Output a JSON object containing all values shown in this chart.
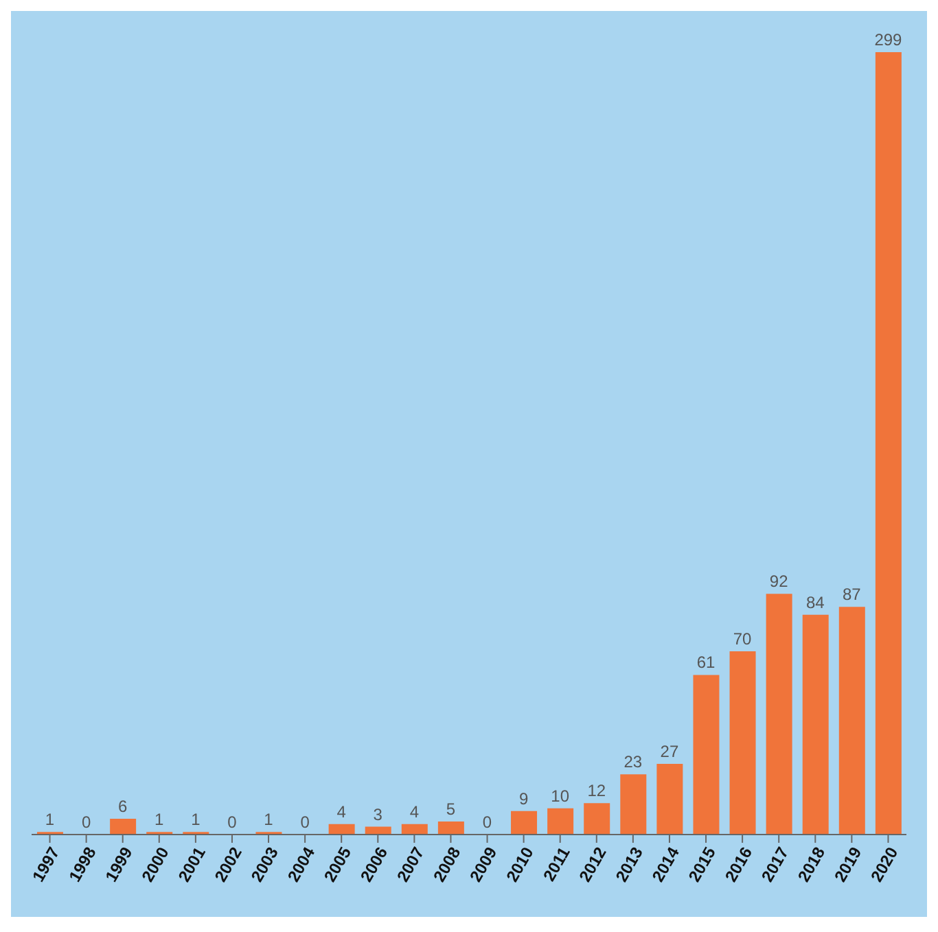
{
  "chart_data": {
    "type": "bar",
    "categories": [
      "1997",
      "1998",
      "1999",
      "2000",
      "2001",
      "2002",
      "2003",
      "2004",
      "2005",
      "2006",
      "2007",
      "2008",
      "2009",
      "2010",
      "2011",
      "2012",
      "2013",
      "2014",
      "2015",
      "2016",
      "2017",
      "2018",
      "2019",
      "2020"
    ],
    "values": [
      1,
      0,
      6,
      1,
      1,
      0,
      1,
      0,
      4,
      3,
      4,
      5,
      0,
      9,
      10,
      12,
      23,
      27,
      61,
      70,
      92,
      84,
      87,
      299
    ],
    "color": "#f0743a",
    "data_labels": true,
    "grid": false,
    "legend": false
  }
}
